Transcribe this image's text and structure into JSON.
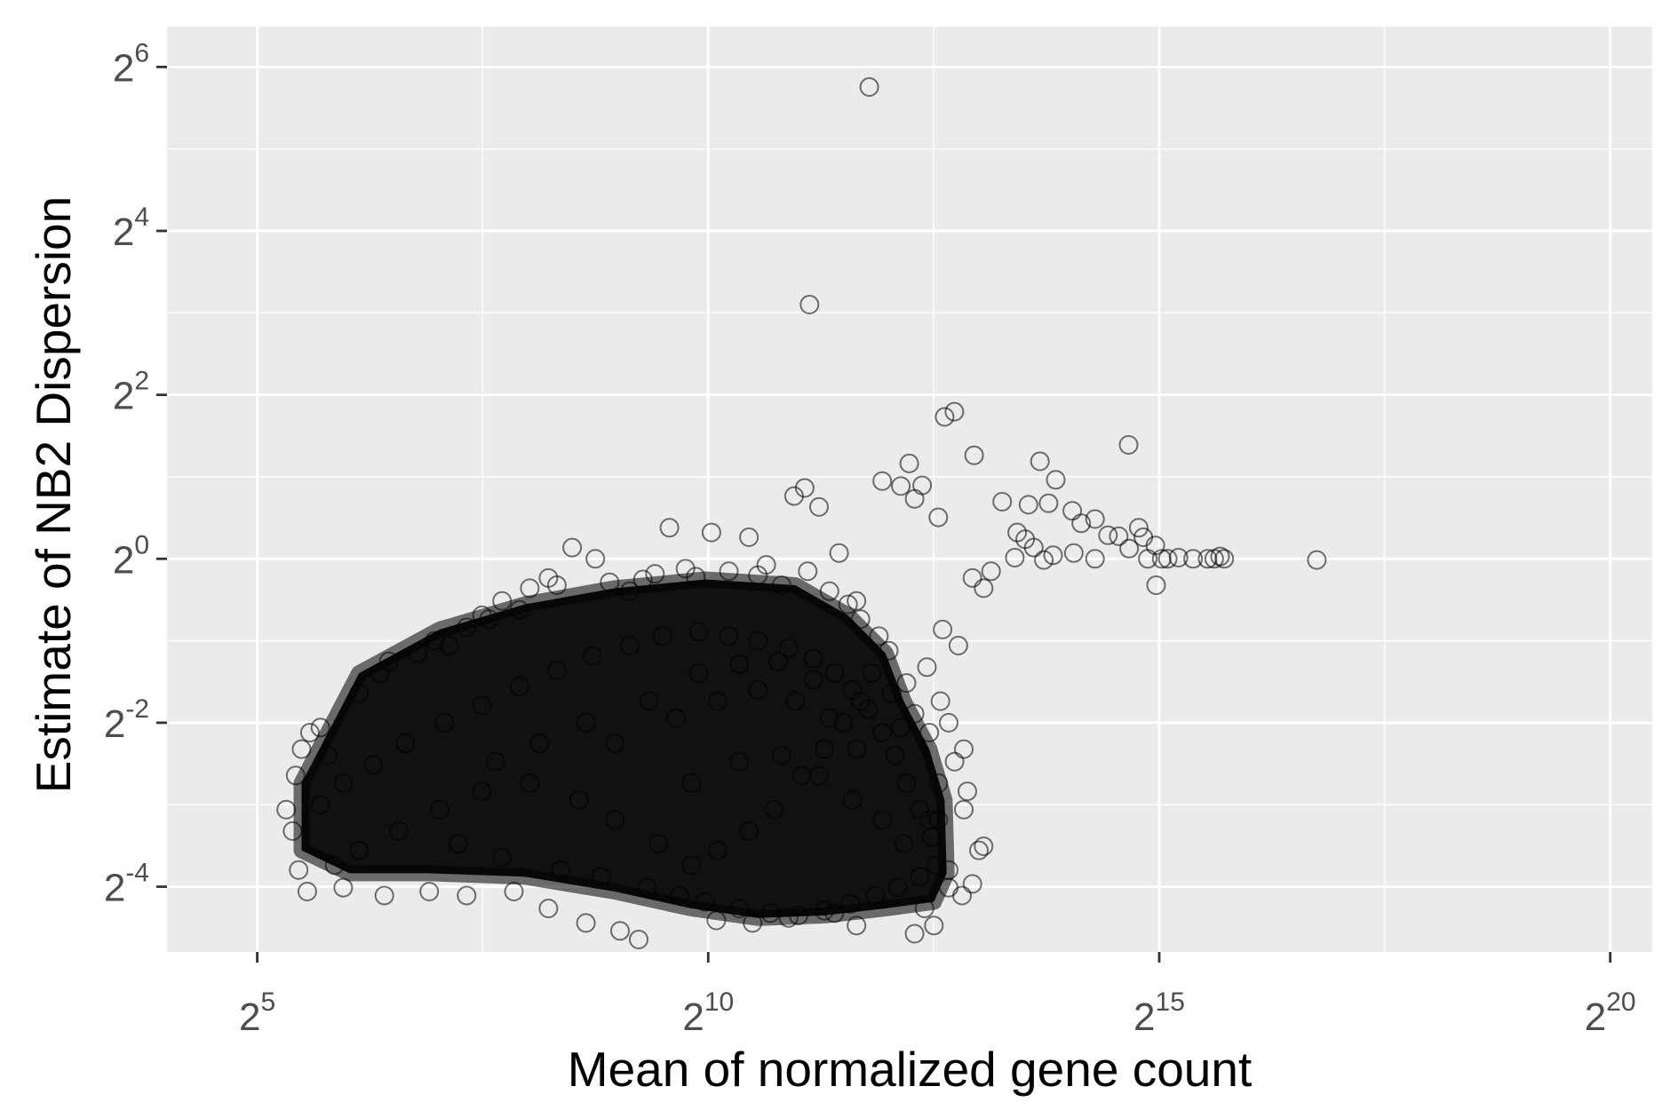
{
  "chart_data": {
    "type": "scatter",
    "title": "",
    "xlabel": "Mean of normalized gene count",
    "ylabel": "Estimate of NB2 Dispersion",
    "x_scale": "log2",
    "y_scale": "log2",
    "xlim": [
      16,
      1448154
    ],
    "ylim": [
      0.036,
      90
    ],
    "x_ticks": [
      {
        "base": "2",
        "exp": "5",
        "value": 32
      },
      {
        "base": "2",
        "exp": "10",
        "value": 1024
      },
      {
        "base": "2",
        "exp": "15",
        "value": 32768
      },
      {
        "base": "2",
        "exp": "20",
        "value": 1048576
      }
    ],
    "y_ticks": [
      {
        "base": "2",
        "exp": "-4",
        "value": 0.0625
      },
      {
        "base": "2",
        "exp": "-2",
        "value": 0.25
      },
      {
        "base": "2",
        "exp": "0",
        "value": 1
      },
      {
        "base": "2",
        "exp": "2",
        "value": 4
      },
      {
        "base": "2",
        "exp": "4",
        "value": 16
      },
      {
        "base": "2",
        "exp": "6",
        "value": 64
      }
    ],
    "grid": true,
    "marker": "open-circle",
    "marker_color": "#000000",
    "marker_alpha": 0.55,
    "background_color": "#ebebeb",
    "grid_color": "#ffffff",
    "legend": "none",
    "series": [
      {
        "points": [
          [
            3530,
            54.0
          ],
          [
            2231,
            8.58
          ],
          [
            6300,
            3.32
          ],
          [
            6790,
            3.47
          ],
          [
            25900,
            2.62
          ],
          [
            7900,
            2.4
          ],
          [
            4800,
            2.24
          ],
          [
            13100,
            2.28
          ],
          [
            14800,
            1.95
          ],
          [
            3900,
            1.93
          ],
          [
            4500,
            1.85
          ],
          [
            12000,
            1.58
          ],
          [
            1980,
            1.7
          ],
          [
            2150,
            1.82
          ],
          [
            5300,
            1.86
          ],
          [
            2400,
            1.55
          ],
          [
            6000,
            1.42
          ],
          [
            5000,
            1.66
          ],
          [
            9800,
            1.62
          ],
          [
            16800,
            1.5
          ],
          [
            22100,
            1.22
          ],
          [
            11700,
            1.18
          ],
          [
            10800,
            1.01
          ],
          [
            26000,
            1.09
          ],
          [
            31800,
            1.12
          ],
          [
            24000,
            1.21
          ],
          [
            20000,
            1.4
          ],
          [
            14000,
            1.6
          ],
          [
            18000,
            1.35
          ],
          [
            28000,
            1.3
          ],
          [
            33400,
            1.0
          ],
          [
            35000,
            1.0
          ],
          [
            42500,
            1.0
          ],
          [
            47500,
            1.0
          ],
          [
            52300,
            1.02
          ],
          [
            54000,
            1.0
          ],
          [
            50000,
            1.0
          ],
          [
            110000,
            0.99
          ],
          [
            30000,
            1.0
          ],
          [
            20000,
            1.0
          ],
          [
            17000,
            1.05
          ],
          [
            14500,
            1.03
          ],
          [
            13500,
            0.99
          ],
          [
            32000,
            0.8
          ],
          [
            38000,
            1.01
          ],
          [
            29000,
            1.2
          ],
          [
            12500,
            1.1
          ],
          [
            11000,
            1.25
          ],
          [
            9000,
            0.9
          ],
          [
            7800,
            0.85
          ],
          [
            8500,
            0.78
          ],
          [
            3200,
            0.7
          ],
          [
            2800,
            1.05
          ],
          [
            1400,
            1.2
          ],
          [
            1050,
            1.25
          ],
          [
            430,
            1.0
          ],
          [
            300,
            0.85
          ],
          [
            360,
            1.1
          ],
          [
            180,
            0.62
          ],
          [
            760,
            1.3
          ],
          [
            1600,
            0.95
          ],
          [
            6200,
            0.55
          ],
          [
            7000,
            0.48
          ],
          [
            5500,
            0.4
          ],
          [
            4700,
            0.35
          ],
          [
            4200,
            0.32
          ],
          [
            6500,
            0.25
          ],
          [
            7300,
            0.2
          ],
          [
            6800,
            0.18
          ],
          [
            7500,
            0.14
          ],
          [
            7300,
            0.12
          ],
          [
            6000,
            0.11
          ],
          [
            8200,
            0.085
          ],
          [
            8500,
            0.088
          ],
          [
            6500,
            0.072
          ],
          [
            7800,
            0.064
          ],
          [
            7200,
            0.058
          ],
          [
            5400,
            0.052
          ],
          [
            6500,
            0.062
          ],
          [
            5800,
            0.045
          ],
          [
            5000,
            0.042
          ],
          [
            3200,
            0.045
          ],
          [
            2700,
            0.05
          ],
          [
            1900,
            0.048
          ],
          [
            1440,
            0.046
          ],
          [
            1090,
            0.047
          ],
          [
            600,
            0.04
          ],
          [
            520,
            0.043
          ],
          [
            400,
            0.046
          ],
          [
            300,
            0.052
          ],
          [
            230,
            0.06
          ],
          [
            160,
            0.058
          ],
          [
            120,
            0.06
          ],
          [
            85,
            0.058
          ],
          [
            62,
            0.062
          ],
          [
            47,
            0.06
          ],
          [
            44,
            0.072
          ],
          [
            42,
            0.1
          ],
          [
            40,
            0.12
          ],
          [
            43,
            0.16
          ],
          [
            45,
            0.2
          ],
          [
            55,
            0.19
          ],
          [
            52,
            0.24
          ],
          [
            48,
            0.23
          ],
          [
            70,
            0.32
          ],
          [
            82,
            0.38
          ],
          [
            88,
            0.42
          ],
          [
            110,
            0.45
          ],
          [
            125,
            0.5
          ],
          [
            140,
            0.48
          ],
          [
            160,
            0.56
          ],
          [
            190,
            0.6
          ],
          [
            210,
            0.7
          ],
          [
            240,
            0.65
          ],
          [
            260,
            0.78
          ],
          [
            320,
            0.8
          ],
          [
            480,
            0.82
          ],
          [
            560,
            0.76
          ],
          [
            620,
            0.84
          ],
          [
            680,
            0.88
          ],
          [
            860,
            0.92
          ],
          [
            930,
            0.86
          ],
          [
            1200,
            0.9
          ],
          [
            1500,
            0.87
          ],
          [
            1800,
            0.8
          ],
          [
            2200,
            0.9
          ],
          [
            2600,
            0.76
          ],
          [
            3000,
            0.68
          ],
          [
            3300,
            0.6
          ],
          [
            3800,
            0.52
          ],
          [
            4100,
            0.46
          ],
          [
            3600,
            0.38
          ],
          [
            3300,
            0.3
          ],
          [
            2900,
            0.25
          ],
          [
            2500,
            0.2
          ],
          [
            2100,
            0.16
          ],
          [
            1700,
            0.12
          ],
          [
            1400,
            0.1
          ],
          [
            1100,
            0.085
          ],
          [
            900,
            0.075
          ],
          [
            700,
            0.09
          ],
          [
            500,
            0.11
          ],
          [
            380,
            0.13
          ],
          [
            260,
            0.15
          ],
          [
            180,
            0.14
          ],
          [
            130,
            0.12
          ],
          [
            95,
            0.1
          ],
          [
            70,
            0.085
          ],
          [
            58,
            0.075
          ],
          [
            150,
            0.09
          ],
          [
            210,
            0.08
          ],
          [
            330,
            0.072
          ],
          [
            450,
            0.068
          ],
          [
            640,
            0.062
          ],
          [
            820,
            0.058
          ],
          [
            1000,
            0.055
          ],
          [
            1300,
            0.052
          ],
          [
            1650,
            0.05
          ],
          [
            2050,
            0.049
          ],
          [
            2500,
            0.051
          ],
          [
            3050,
            0.054
          ],
          [
            3700,
            0.058
          ],
          [
            4400,
            0.062
          ],
          [
            5200,
            0.068
          ],
          [
            5900,
            0.075
          ],
          [
            5700,
            0.095
          ],
          [
            5200,
            0.12
          ],
          [
            4700,
            0.15
          ],
          [
            4300,
            0.19
          ],
          [
            3900,
            0.23
          ],
          [
            3500,
            0.28
          ],
          [
            3100,
            0.33
          ],
          [
            2700,
            0.38
          ],
          [
            2300,
            0.43
          ],
          [
            1900,
            0.47
          ],
          [
            1500,
            0.5
          ],
          [
            1200,
            0.52
          ],
          [
            950,
            0.54
          ],
          [
            720,
            0.52
          ],
          [
            560,
            0.48
          ],
          [
            420,
            0.44
          ],
          [
            320,
            0.39
          ],
          [
            240,
            0.34
          ],
          [
            180,
            0.29
          ],
          [
            135,
            0.25
          ],
          [
            100,
            0.21
          ],
          [
            78,
            0.175
          ],
          [
            62,
            0.15
          ],
          [
            52,
            0.125
          ],
          [
            500,
            0.21
          ],
          [
            800,
            0.26
          ],
          [
            1100,
            0.3
          ],
          [
            1500,
            0.33
          ],
          [
            2000,
            0.3
          ],
          [
            2600,
            0.26
          ],
          [
            3200,
            0.2
          ],
          [
            900,
            0.15
          ],
          [
            1300,
            0.18
          ],
          [
            1800,
            0.19
          ],
          [
            2400,
            0.16
          ],
          [
            3100,
            0.13
          ],
          [
            3900,
            0.11
          ],
          [
            4600,
            0.09
          ],
          [
            650,
            0.3
          ],
          [
            400,
            0.25
          ],
          [
            280,
            0.21
          ],
          [
            200,
            0.18
          ],
          [
            950,
            0.38
          ],
          [
            1300,
            0.41
          ],
          [
            1750,
            0.42
          ],
          [
            2300,
            0.36
          ],
          [
            5600,
            0.23
          ],
          [
            6100,
            0.3
          ],
          [
            5000,
            0.27
          ],
          [
            4500,
            0.24
          ],
          [
            6000,
            0.15
          ],
          [
            5600,
            0.11
          ]
        ]
      }
    ]
  }
}
